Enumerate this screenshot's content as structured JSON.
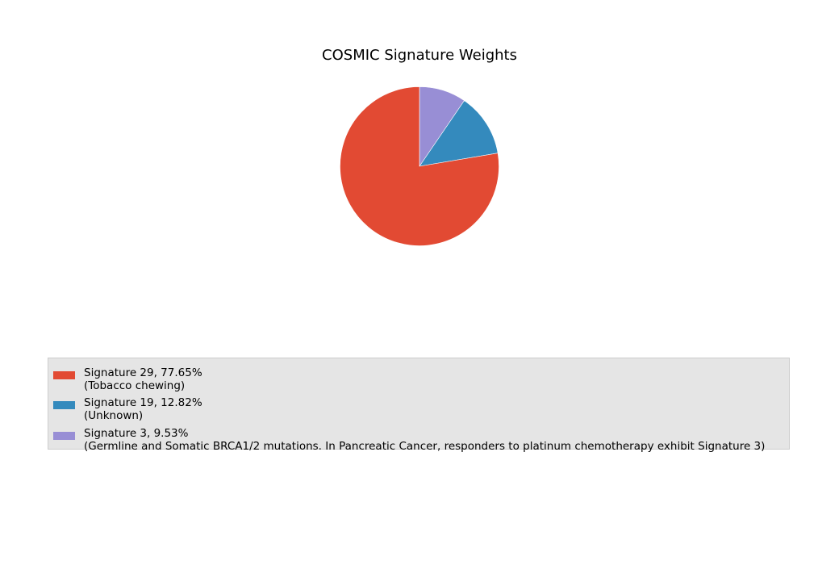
{
  "chart_data": {
    "type": "pie",
    "title": "COSMIC Signature Weights",
    "start_angle_deg": 90,
    "direction": "clockwise",
    "slices": [
      {
        "name": "Signature 3",
        "value": 9.53,
        "label": "Signature 3, 9.53%",
        "description": "(Germline and Somatic BRCA1/2 mutations. In Pancreatic Cancer, responders to platinum chemotherapy exhibit Signature 3)",
        "color": "#988ed5"
      },
      {
        "name": "Signature 19",
        "value": 12.82,
        "label": "Signature 19, 12.82%",
        "description": "(Unknown)",
        "color": "#348abd"
      },
      {
        "name": "Signature 29",
        "value": 77.65,
        "label": "Signature 29, 77.65%",
        "description": "(Tobacco chewing)",
        "color": "#e24a33"
      }
    ],
    "legend": {
      "placement": "bottom",
      "entries": [
        {
          "line1": "Signature 29, 77.65%",
          "line2": "(Tobacco chewing)",
          "color": "#e24a33"
        },
        {
          "line1": "Signature 19, 12.82%",
          "line2": "(Unknown)",
          "color": "#348abd"
        },
        {
          "line1": "Signature 3, 9.53%",
          "line2": "(Germline and Somatic BRCA1/2 mutations. In Pancreatic Cancer, responders to platinum chemotherapy exhibit Signature 3)",
          "color": "#988ed5"
        }
      ]
    }
  }
}
